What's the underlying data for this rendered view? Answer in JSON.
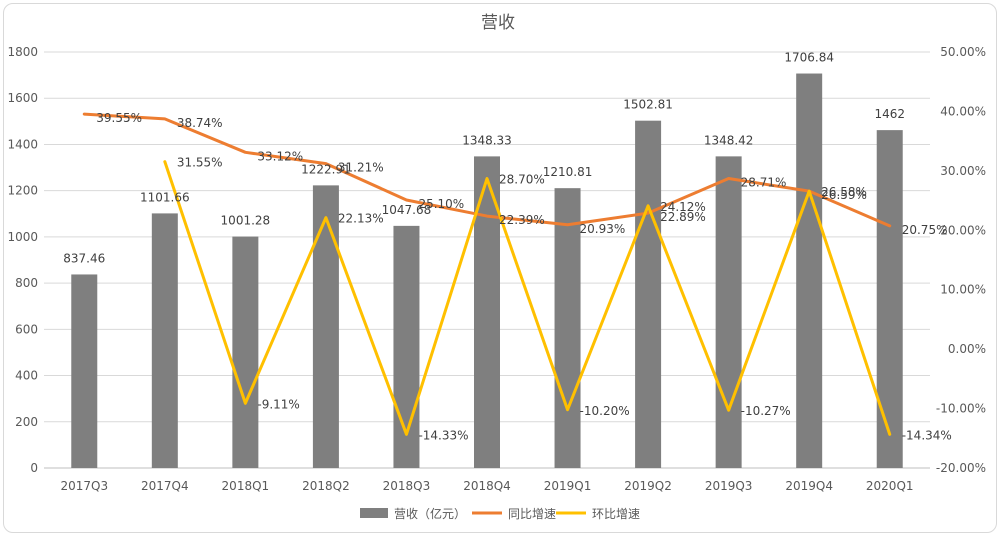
{
  "chart_data": {
    "type": "bar",
    "title": "营收",
    "categories": [
      "2017Q3",
      "2017Q4",
      "2018Q1",
      "2018Q2",
      "2018Q3",
      "2018Q4",
      "2019Q1",
      "2019Q2",
      "2019Q3",
      "2019Q4",
      "2020Q1"
    ],
    "y_left": {
      "ylim": [
        0,
        1800
      ],
      "ticks": [
        "0",
        "200",
        "400",
        "600",
        "800",
        "1000",
        "1200",
        "1400",
        "1600",
        "1800"
      ]
    },
    "y_right": {
      "ylim": [
        -20,
        50
      ],
      "ticks": [
        "-20.00%",
        "-10.00%",
        "0.00%",
        "10.00%",
        "20.00%",
        "30.00%",
        "40.00%",
        "50.00%"
      ]
    },
    "grid": true,
    "legend_position": "bottom",
    "series": [
      {
        "name": "营收（亿元）",
        "kind": "bar",
        "axis": "left",
        "color": "#7f7f7f",
        "values": [
          837.46,
          1101.66,
          1001.28,
          1222.91,
          1047.68,
          1348.33,
          1210.81,
          1502.81,
          1348.42,
          1706.84,
          1462
        ],
        "labels": [
          "837.46",
          "1101.66",
          "1001.28",
          "1222.91",
          "1047.68",
          "1348.33",
          "1210.81",
          "1502.81",
          "1348.42",
          "1706.84",
          "1462"
        ]
      },
      {
        "name": "同比增速",
        "kind": "line",
        "axis": "right",
        "color": "#ed7d31",
        "values": [
          39.55,
          38.74,
          33.12,
          31.21,
          25.1,
          22.39,
          20.93,
          22.89,
          28.71,
          26.59,
          20.75
        ],
        "labels": [
          "39.55%",
          "38.74%",
          "33.12%",
          "31.21%",
          "25.10%",
          "22.39%",
          "20.93%",
          "22.89%",
          "28.71%",
          "26.59%",
          "20.75%"
        ]
      },
      {
        "name": "环比增速",
        "kind": "line",
        "axis": "right",
        "color": "#ffc000",
        "values": [
          null,
          31.55,
          -9.11,
          22.13,
          -14.33,
          28.7,
          -10.2,
          24.12,
          -10.27,
          26.58,
          -14.34
        ],
        "labels": [
          "",
          "31.55%",
          "-9.11%",
          "22.13%",
          "-14.33%",
          "28.70%",
          "-10.20%",
          "24.12%",
          "-10.27%",
          "26.58%",
          "-14.34%"
        ]
      }
    ]
  }
}
